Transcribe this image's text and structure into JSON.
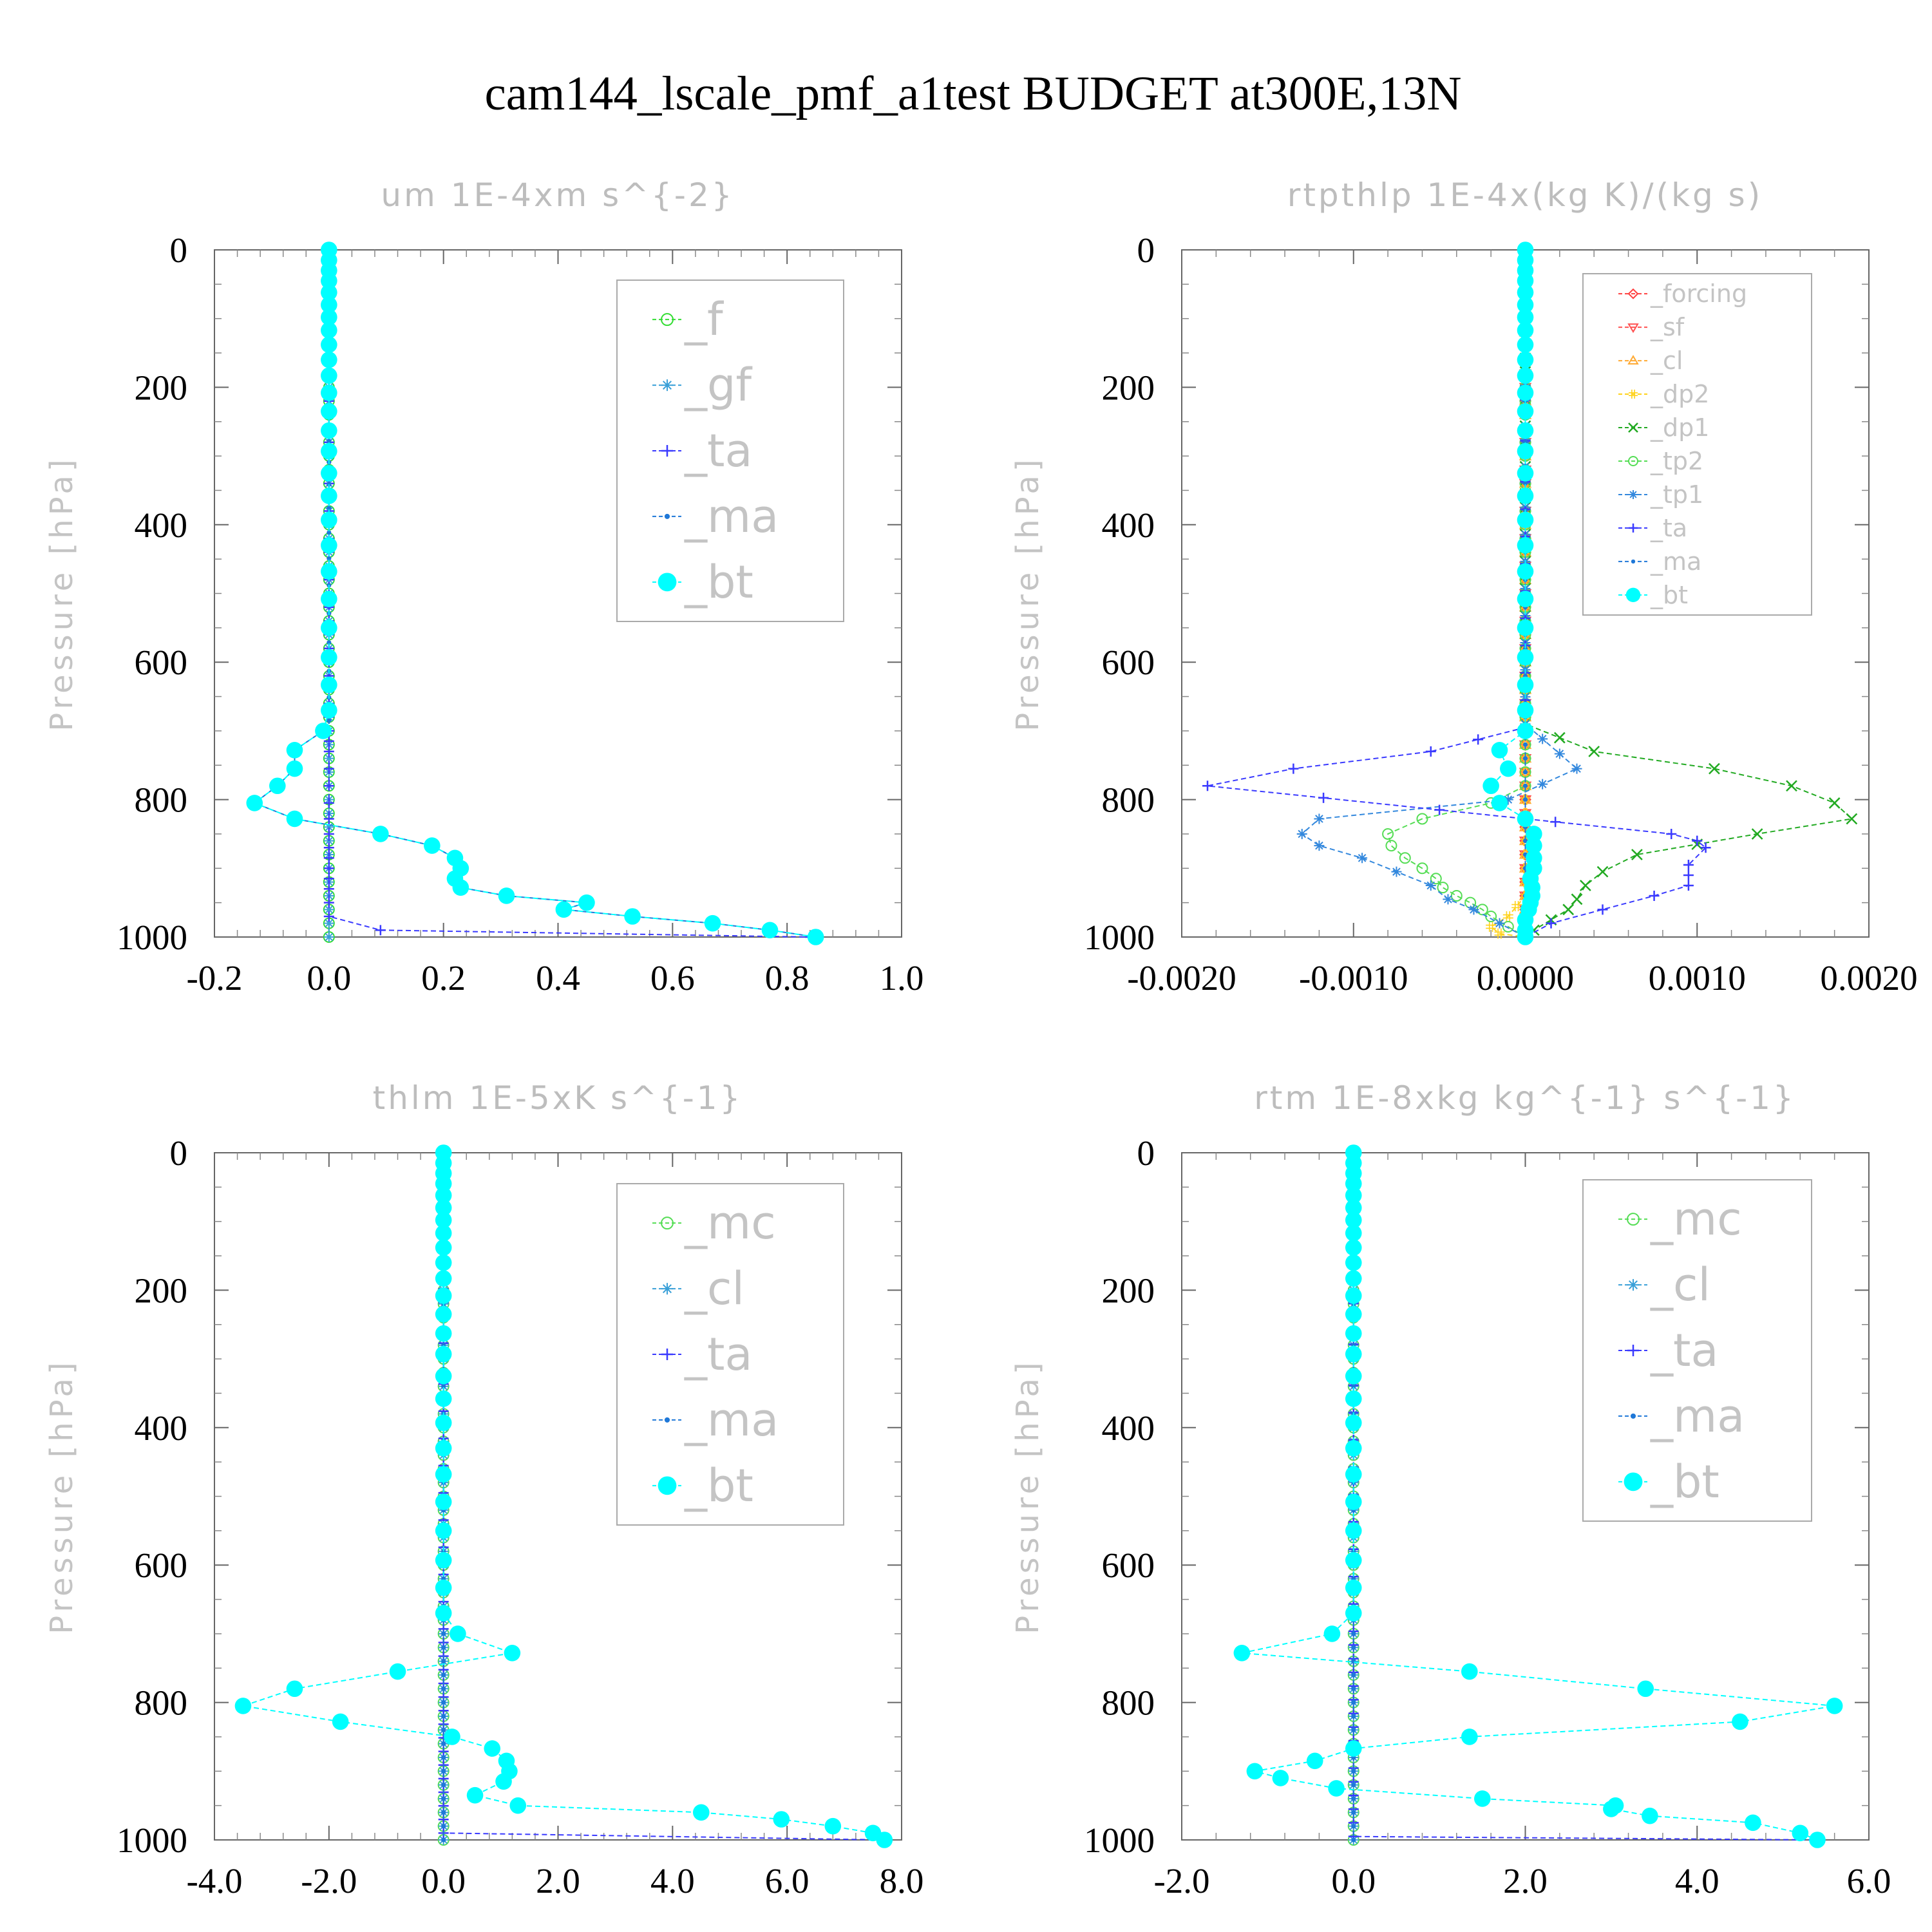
{
  "title": "cam144_lscale_pmf_a1test  BUDGET at300E,13N",
  "colors": {
    "f": "#33dd33",
    "gf": "#3aa0d8",
    "ta": "#3a3aff",
    "ma": "#1f78d8",
    "bt": "#00ffff",
    "forcing": "#ff4040",
    "sf": "#ff5050",
    "cl_orange": "#ffaa33",
    "dp2": "#ffd21a",
    "dp1": "#22aa22",
    "tp2": "#55dd55",
    "tp1": "#3388dd",
    "mc": "#55dd55",
    "cl_blue": "#3aa0d8",
    "axis": "#555555",
    "grey_text": "#c4c4c4"
  },
  "chart_data": [
    {
      "type": "line",
      "title": "um   1E-4xm s^{-2}",
      "ylabel": "Pressure [hPa]",
      "xlim": [
        -0.2,
        1.0
      ],
      "xticks": [
        "-0.2",
        "0.0",
        "0.2",
        "0.4",
        "0.6",
        "0.8",
        "1.0"
      ],
      "ylim": [
        1000,
        0
      ],
      "yticks": [
        "0",
        "200",
        "400",
        "600",
        "800",
        "1000"
      ],
      "legend_position": "top-right",
      "series": [
        {
          "name": "_f",
          "marker": "circle-open",
          "color": "#33dd33",
          "x": [
            0,
            0
          ],
          "y": [
            0,
            1000
          ]
        },
        {
          "name": "_gf",
          "marker": "asterisk",
          "color": "#3aa0d8",
          "x": [
            0,
            0
          ],
          "y": [
            0,
            1000
          ]
        },
        {
          "name": "_ta",
          "marker": "plus",
          "color": "#3a3aff",
          "x": [
            0,
            0,
            0,
            0,
            0,
            0,
            0,
            0,
            0,
            0,
            0,
            0,
            0,
            0,
            0,
            0.09,
            0.84
          ],
          "y": [
            0,
            700,
            730,
            755,
            780,
            805,
            828,
            850,
            870,
            885,
            900,
            915,
            930,
            950,
            970,
            990,
            1000
          ]
        },
        {
          "name": "_ma",
          "marker": "dot",
          "color": "#1f78d8",
          "x": [
            0,
            0,
            0,
            0,
            0,
            0,
            0,
            0,
            0,
            0,
            0,
            0,
            0,
            0,
            0,
            0,
            0,
            0,
            0,
            0,
            0,
            0,
            0,
            0,
            0,
            0,
            0,
            0,
            0,
            0,
            -0.01,
            -0.06,
            -0.06,
            -0.09,
            -0.13,
            -0.06,
            0.09,
            0.18,
            0.22,
            0.23,
            0.22,
            0.23,
            0.31,
            0.45,
            0.41,
            0.53,
            0.67,
            0.77,
            0.85
          ],
          "y": [
            0,
            15,
            30,
            45,
            62,
            80,
            98,
            117,
            138,
            160,
            183,
            208,
            235,
            263,
            293,
            325,
            358,
            393,
            430,
            468,
            508,
            550,
            593,
            633,
            670,
            700,
            700,
            700,
            700,
            700,
            700,
            728,
            755,
            780,
            805,
            828,
            850,
            867,
            885,
            900,
            915,
            928,
            940,
            950,
            960,
            970,
            980,
            990,
            1000
          ]
        },
        {
          "name": "_bt",
          "marker": "filled-circle",
          "color": "#00ffff",
          "x": [
            0,
            0,
            0,
            0,
            0,
            0,
            0,
            0,
            0,
            0,
            0,
            0,
            0,
            0,
            0,
            0,
            0,
            0,
            0,
            0,
            0,
            0,
            0,
            0,
            0,
            -0.01,
            -0.06,
            -0.06,
            -0.09,
            -0.13,
            -0.06,
            0.09,
            0.18,
            0.22,
            0.23,
            0.22,
            0.23,
            0.31,
            0.45,
            0.41,
            0.53,
            0.67,
            0.77,
            0.85
          ],
          "y": [
            0,
            15,
            30,
            45,
            62,
            80,
            98,
            117,
            138,
            160,
            183,
            208,
            235,
            263,
            293,
            325,
            358,
            393,
            430,
            468,
            508,
            550,
            593,
            633,
            670,
            700,
            728,
            755,
            780,
            805,
            828,
            850,
            867,
            885,
            900,
            915,
            928,
            940,
            950,
            960,
            970,
            980,
            990,
            1000
          ]
        }
      ]
    },
    {
      "type": "line",
      "title": "rtpthlp   1E-4x(kg K)/(kg s)",
      "ylabel": "Pressure [hPa]",
      "xlim": [
        -0.002,
        0.002
      ],
      "xticks": [
        "-0.0020",
        "-0.0010",
        "0.0000",
        "0.0010",
        "0.0020"
      ],
      "ylim": [
        1000,
        0
      ],
      "yticks": [
        "0",
        "200",
        "400",
        "600",
        "800",
        "1000"
      ],
      "legend_position": "top-right",
      "series": [
        {
          "name": "_forcing",
          "marker": "diamond-open",
          "color": "#ff4040",
          "x": [
            0,
            0
          ],
          "y": [
            0,
            1000
          ]
        },
        {
          "name": "_sf",
          "marker": "triangle-down",
          "color": "#ff5050",
          "x": [
            0,
            0
          ],
          "y": [
            0,
            1000
          ]
        },
        {
          "name": "_cl",
          "marker": "triangle-up",
          "color": "#ffaa33",
          "x": [
            0,
            0
          ],
          "y": [
            0,
            1000
          ]
        },
        {
          "name": "_dp2",
          "marker": "cross-open",
          "color": "#ffd21a",
          "x": [
            0,
            0,
            -5e-05,
            -0.0001,
            -0.0002,
            -0.00015,
            0.0
          ],
          "y": [
            0,
            940,
            955,
            970,
            985,
            995,
            1000
          ]
        },
        {
          "name": "_dp1",
          "marker": "x",
          "color": "#22aa22",
          "x": [
            0,
            0.0,
            0.0004,
            0.0011,
            0.00155,
            0.0018,
            0.0019,
            0.00135,
            0.00065,
            0.00045,
            0.00035,
            0.0003,
            0.00025,
            0.00015,
            5e-05,
            0.0
          ],
          "y": [
            0,
            690,
            730,
            755,
            780,
            805,
            828,
            850,
            880,
            905,
            925,
            945,
            960,
            975,
            990,
            1000
          ]
        },
        {
          "name": "_tp2",
          "marker": "circle-open",
          "color": "#55dd55",
          "x": [
            0,
            0,
            -0.0002,
            -0.0006,
            -0.0008,
            -0.00078,
            -0.0007,
            -0.0006,
            -0.00052,
            -0.00048,
            -0.0004,
            -0.00032,
            -0.00025,
            -0.0002,
            -0.0001,
            0.0
          ],
          "y": [
            0,
            780,
            805,
            828,
            850,
            867,
            885,
            900,
            915,
            928,
            940,
            950,
            960,
            970,
            985,
            1000
          ]
        },
        {
          "name": "_tp1",
          "marker": "asterisk",
          "color": "#3388dd",
          "x": [
            0,
            0,
            0.0003,
            -0.0001,
            -0.0012,
            -0.0013,
            -0.0012,
            -0.00095,
            -0.00075,
            -0.00055,
            -0.00045,
            -0.0003,
            -0.00015,
            0.0
          ],
          "y": [
            0,
            690,
            755,
            800,
            828,
            850,
            867,
            885,
            905,
            925,
            945,
            960,
            980,
            1000
          ]
        },
        {
          "name": "_ta",
          "marker": "plus",
          "color": "#3a3aff",
          "x": [
            0,
            0.0,
            -0.00055,
            -0.00135,
            -0.00185,
            0.00085,
            0.001,
            0.00105,
            0.00095,
            0.00095,
            0.00095,
            0.00075,
            0.00045,
            0.00015,
            0.0
          ],
          "y": [
            0,
            695,
            730,
            755,
            780,
            850,
            860,
            870,
            895,
            910,
            925,
            940,
            960,
            980,
            1000
          ]
        },
        {
          "name": "_ma",
          "marker": "dot",
          "color": "#1f78d8",
          "x": [
            0,
            0,
            0
          ],
          "y": [
            0,
            500,
            1000
          ]
        },
        {
          "name": "_bt",
          "marker": "filled-circle",
          "color": "#00ffff",
          "x": [
            0,
            0,
            0,
            0,
            0,
            0,
            0,
            0,
            0,
            0,
            0,
            0,
            0,
            0,
            0,
            0,
            0,
            0,
            0,
            0,
            0,
            0,
            0,
            0,
            0,
            0,
            -0.00015,
            -0.0001,
            -0.0002,
            -0.00015,
            0.0,
            5e-05,
            5e-05,
            5e-05,
            5e-05,
            3e-05,
            4e-05,
            4e-05,
            3e-05,
            2e-05,
            0.0,
            0.0,
            0.0
          ],
          "y": [
            0,
            15,
            30,
            45,
            62,
            80,
            98,
            117,
            138,
            160,
            183,
            208,
            235,
            263,
            293,
            325,
            358,
            393,
            430,
            468,
            508,
            550,
            593,
            633,
            670,
            700,
            728,
            755,
            780,
            805,
            828,
            850,
            867,
            885,
            900,
            915,
            928,
            940,
            950,
            960,
            975,
            990,
            1000
          ]
        }
      ]
    },
    {
      "type": "line",
      "title": "thlm   1E-5xK s^{-1}",
      "ylabel": "Pressure [hPa]",
      "xlim": [
        -4.0,
        8.0
      ],
      "xticks": [
        "-4.0",
        "-2.0",
        "0.0",
        "2.0",
        "4.0",
        "6.0",
        "8.0"
      ],
      "ylim": [
        1000,
        0
      ],
      "yticks": [
        "0",
        "200",
        "400",
        "600",
        "800",
        "1000"
      ],
      "legend_position": "top-right",
      "series": [
        {
          "name": "_mc",
          "marker": "circle-open",
          "color": "#55dd55",
          "x": [
            0,
            0
          ],
          "y": [
            0,
            1000
          ]
        },
        {
          "name": "_cl",
          "marker": "asterisk",
          "color": "#3aa0d8",
          "x": [
            0,
            0
          ],
          "y": [
            0,
            1000
          ]
        },
        {
          "name": "_ta",
          "marker": "plus",
          "color": "#3a3aff",
          "x": [
            0,
            0,
            7.7
          ],
          "y": [
            0,
            990,
            1000
          ]
        },
        {
          "name": "_ma",
          "marker": "dot",
          "color": "#1f78d8",
          "x": [
            0,
            0
          ],
          "y": [
            0,
            1000
          ]
        },
        {
          "name": "_bt",
          "marker": "filled-circle",
          "color": "#00ffff",
          "x": [
            0,
            0,
            0,
            0,
            0,
            0,
            0,
            0,
            0,
            0,
            0,
            0,
            0,
            0,
            0,
            0,
            0,
            0,
            0,
            0,
            0,
            0,
            0,
            0,
            0,
            0.25,
            1.2,
            -0.8,
            -2.6,
            -3.5,
            -1.8,
            0.15,
            0.85,
            1.1,
            1.15,
            1.05,
            0.55,
            1.3,
            4.5,
            5.9,
            6.8,
            7.5,
            7.7
          ],
          "y": [
            0,
            15,
            30,
            45,
            62,
            80,
            98,
            117,
            138,
            160,
            183,
            208,
            235,
            263,
            293,
            325,
            358,
            393,
            430,
            468,
            508,
            550,
            593,
            633,
            670,
            700,
            728,
            755,
            780,
            805,
            828,
            850,
            867,
            885,
            900,
            915,
            935,
            950,
            960,
            970,
            980,
            990,
            1000
          ]
        }
      ]
    },
    {
      "type": "line",
      "title": "rtm   1E-8xkg kg^{-1} s^{-1}",
      "ylabel": "Pressure [hPa]",
      "xlim": [
        -2.0,
        6.0
      ],
      "xticks": [
        "-2.0",
        "0.0",
        "2.0",
        "4.0",
        "6.0"
      ],
      "ylim": [
        1000,
        0
      ],
      "yticks": [
        "0",
        "200",
        "400",
        "600",
        "800",
        "1000"
      ],
      "legend_position": "top-right",
      "series": [
        {
          "name": "_mc",
          "marker": "circle-open",
          "color": "#55dd55",
          "x": [
            0,
            0
          ],
          "y": [
            0,
            1000
          ]
        },
        {
          "name": "_cl",
          "marker": "asterisk",
          "color": "#3aa0d8",
          "x": [
            0,
            0
          ],
          "y": [
            0,
            1000
          ]
        },
        {
          "name": "_ta",
          "marker": "plus",
          "color": "#3a3aff",
          "x": [
            0,
            0,
            5.4
          ],
          "y": [
            0,
            995,
            1000
          ]
        },
        {
          "name": "_ma",
          "marker": "dot",
          "color": "#1f78d8",
          "x": [
            0,
            0
          ],
          "y": [
            0,
            1000
          ]
        },
        {
          "name": "_bt",
          "marker": "filled-circle",
          "color": "#00ffff",
          "x": [
            0,
            0,
            0,
            0,
            0,
            0,
            0,
            0,
            0,
            0,
            0,
            0,
            0,
            0,
            0,
            0,
            0,
            0,
            0,
            0,
            0,
            0,
            0,
            0,
            0,
            -0.25,
            -1.3,
            1.35,
            3.4,
            5.6,
            4.5,
            1.35,
            0.0,
            -0.45,
            -1.15,
            -0.85,
            -0.2,
            1.5,
            3.05,
            3.0,
            3.45,
            4.65,
            5.2,
            5.4
          ],
          "y": [
            0,
            15,
            30,
            45,
            62,
            80,
            98,
            117,
            138,
            160,
            183,
            208,
            235,
            263,
            293,
            325,
            358,
            393,
            430,
            468,
            508,
            550,
            593,
            633,
            670,
            700,
            728,
            755,
            780,
            805,
            828,
            850,
            867,
            885,
            900,
            910,
            925,
            940,
            950,
            955,
            965,
            975,
            990,
            1000
          ]
        }
      ]
    }
  ]
}
